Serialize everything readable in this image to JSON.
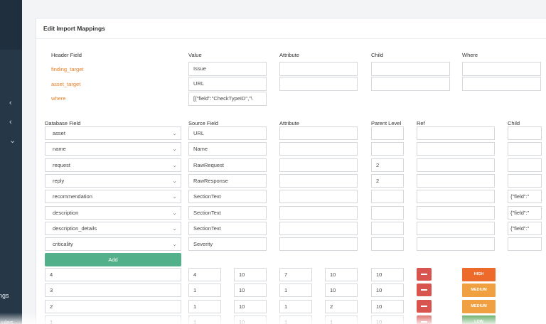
{
  "sidebar": {
    "label_a": "ngs",
    "label_b": "ules"
  },
  "title": "Edit Import Mappings",
  "header_section": {
    "columns": [
      "Header Field",
      "Value",
      "Attribute",
      "Child",
      "Where"
    ],
    "rows": [
      {
        "field": "finding_target",
        "value": "Issue"
      },
      {
        "field": "asset_target",
        "value": "URL"
      },
      {
        "field": "where",
        "value": "[{\"field\":\"CheckTypeID\",\"\\"
      }
    ]
  },
  "db_section": {
    "columns": [
      "Database Field",
      "Source Field",
      "Attribute",
      "Parent Level",
      "Ref",
      "Child"
    ],
    "rows": [
      {
        "db_field": "asset",
        "source": "URL",
        "parent": "",
        "child": ""
      },
      {
        "db_field": "name",
        "source": "Name",
        "parent": "",
        "child": ""
      },
      {
        "db_field": "request",
        "source": "RawRequest",
        "parent": "2",
        "child": ""
      },
      {
        "db_field": "reply",
        "source": "RawResponse",
        "parent": "2",
        "child": ""
      },
      {
        "db_field": "recommendation",
        "source": "SectionText",
        "parent": "",
        "child": "{\"field\":\""
      },
      {
        "db_field": "description",
        "source": "SectionText",
        "parent": "",
        "child": "{\"field\":\""
      },
      {
        "db_field": "description_details",
        "source": "SectionText",
        "parent": "",
        "child": "{\"field\":\""
      },
      {
        "db_field": "criticality",
        "source": "Severity",
        "parent": "",
        "child": ""
      }
    ],
    "add_label": "Add"
  },
  "severity_rows": [
    {
      "level": "4",
      "c1": "4",
      "c2": "10",
      "c3": "7",
      "c4": "10",
      "c5": "10",
      "badge": "HIGH",
      "color": "#ee6a2b"
    },
    {
      "level": "3",
      "c1": "1",
      "c2": "10",
      "c3": "1",
      "c4": "10",
      "c5": "10",
      "badge": "MEDIUM",
      "color": "#f0a040"
    },
    {
      "level": "2",
      "c1": "1",
      "c2": "10",
      "c3": "1",
      "c4": "2",
      "c5": "10",
      "badge": "MEDIUM",
      "color": "#f0a040"
    },
    {
      "level": "1",
      "c1": "1",
      "c2": "10",
      "c3": "1",
      "c4": "1",
      "c5": "10",
      "badge": "LOW",
      "color": "#4a9d4a"
    }
  ],
  "icons": {
    "chevron_left": "‹",
    "chevron_down": "⌄",
    "select_caret": "⌄"
  }
}
